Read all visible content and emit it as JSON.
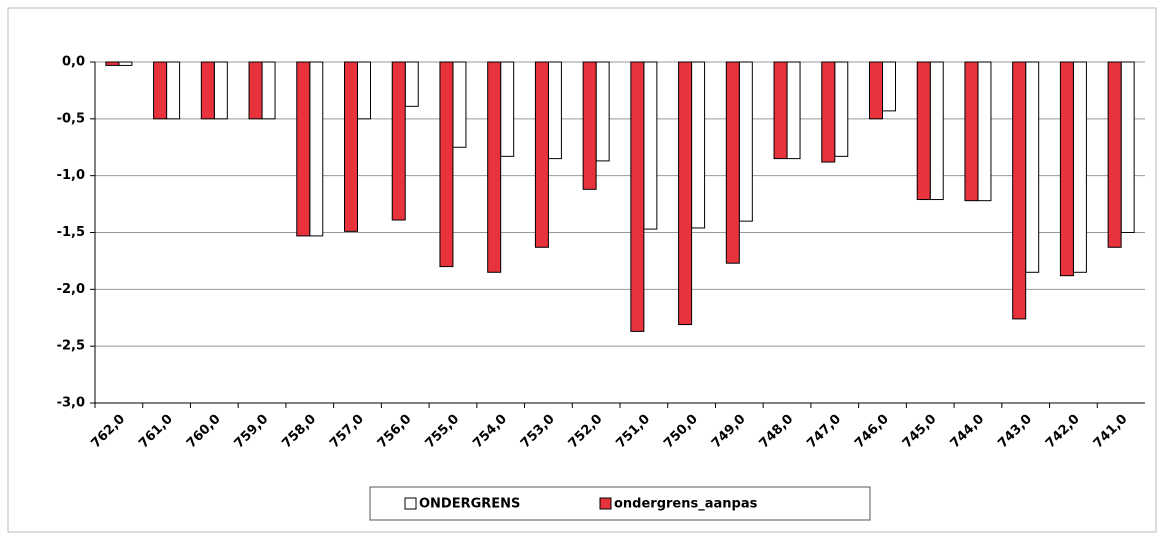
{
  "chart_data": {
    "type": "bar",
    "categories": [
      "762,0",
      "761,0",
      "760,0",
      "759,0",
      "758,0",
      "757,0",
      "756,0",
      "755,0",
      "754,0",
      "753,0",
      "752,0",
      "751,0",
      "750,0",
      "749,0",
      "748,0",
      "747,0",
      "746,0",
      "745,0",
      "744,0",
      "743,0",
      "742,0",
      "741,0"
    ],
    "series": [
      {
        "name": "ONDERGRENS",
        "color": "#ffffff",
        "values": [
          -0.03,
          -0.5,
          -0.5,
          -0.5,
          -1.53,
          -0.5,
          -0.39,
          -0.75,
          -0.83,
          -0.85,
          -0.87,
          -1.47,
          -1.46,
          -1.4,
          -0.85,
          -0.83,
          -0.43,
          -1.21,
          -1.22,
          -1.85,
          -1.85,
          -1.5
        ]
      },
      {
        "name": "ondergrens_aanpas",
        "color": "#e8323c",
        "values": [
          -0.03,
          -0.5,
          -0.5,
          -0.5,
          -1.53,
          -1.49,
          -1.39,
          -1.8,
          -1.85,
          -1.63,
          -1.12,
          -2.37,
          -2.31,
          -1.77,
          -0.85,
          -0.88,
          -0.5,
          -1.21,
          -1.22,
          -2.26,
          -1.88,
          -1.63
        ]
      }
    ],
    "ylim": [
      -3,
      0
    ],
    "yticks": [
      {
        "value": 0,
        "label": "0,0"
      },
      {
        "value": -0.5,
        "label": "-0,5"
      },
      {
        "value": -1,
        "label": "-1,0"
      },
      {
        "value": -1.5,
        "label": "-1,5"
      },
      {
        "value": -2,
        "label": "-2,0"
      },
      {
        "value": -2.5,
        "label": "-2,5"
      },
      {
        "value": -3,
        "label": "-3,0"
      }
    ],
    "grid": true,
    "legend": "bottom"
  }
}
